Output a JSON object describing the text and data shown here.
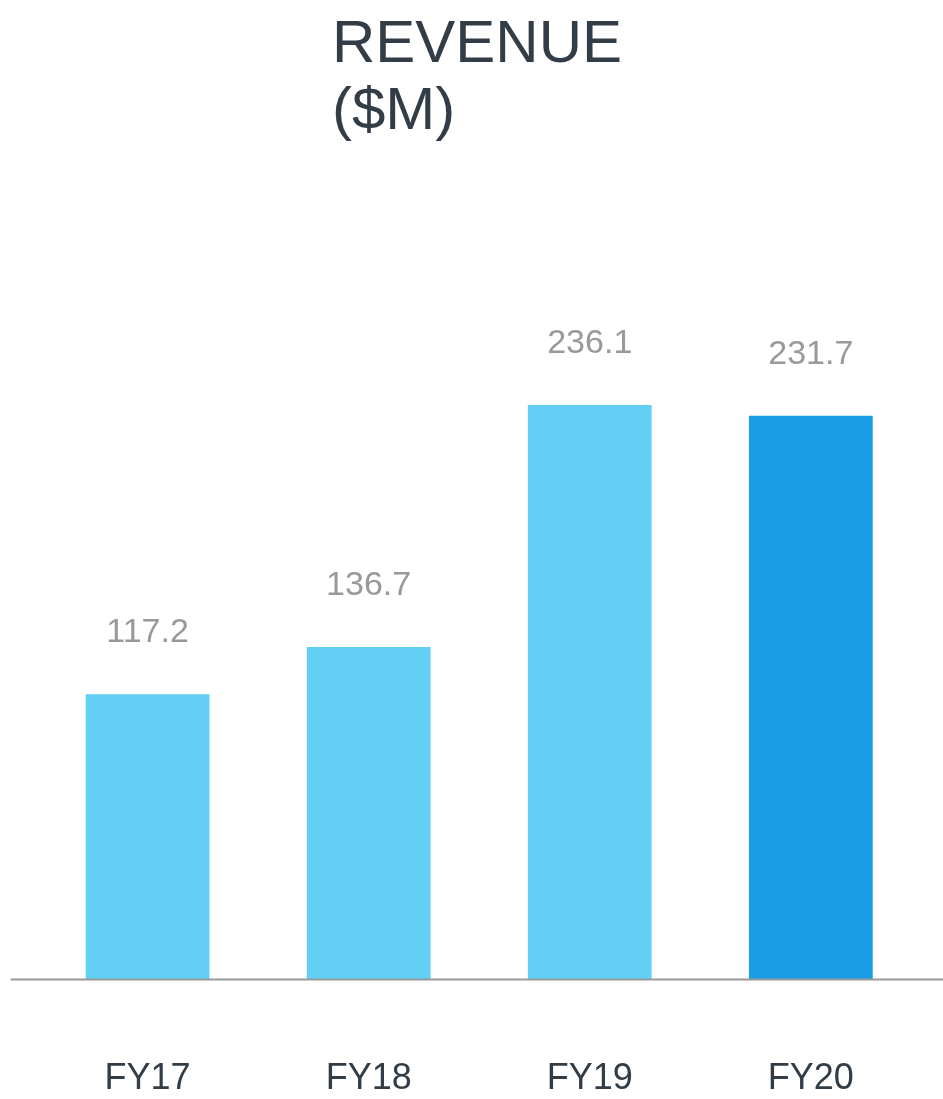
{
  "chart_data": {
    "type": "bar",
    "title": "REVENUE ($M)",
    "categories": [
      "FY17",
      "FY18",
      "FY19",
      "FY20"
    ],
    "values": [
      117.2,
      136.7,
      236.1,
      231.7
    ],
    "colors": [
      "#63cff5",
      "#63cff5",
      "#63cff5",
      "#1b9de6"
    ],
    "data_labels": true
  }
}
